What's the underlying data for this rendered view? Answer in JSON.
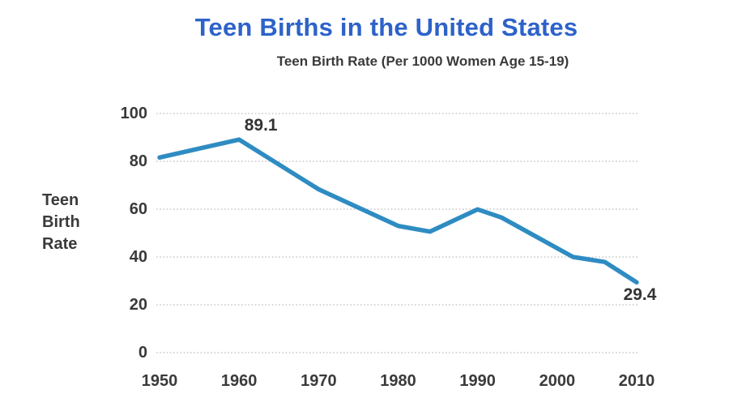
{
  "colors": {
    "title": "#2d62c9",
    "line": "#2e8cc2",
    "text": "#3a3a3a",
    "grid": "#c9c9c9",
    "bg": "#ffffff"
  },
  "header": {
    "title": "Teen Births in the United States",
    "subtitle": "Teen Birth Rate (Per 1000 Women Age 15-19)"
  },
  "chart_data": {
    "type": "line",
    "title": "Teen Births in the United States",
    "subtitle": "Teen Birth Rate (Per 1000 Women Age 15-19)",
    "ylabel": "Teen Birth Rate",
    "xlabel": "",
    "xlim": [
      1950,
      2010
    ],
    "ylim": [
      0,
      100
    ],
    "x_ticks": [
      1950,
      1960,
      1970,
      1980,
      1990,
      2000,
      2010
    ],
    "y_ticks": [
      0,
      20,
      40,
      60,
      80,
      100
    ],
    "grid": "horizontal-dotted",
    "legend": "none",
    "line_color": "#2e8cc2",
    "series": [
      {
        "name": "Teen Birth Rate (Per 1000 Women Age 15-19)",
        "points": [
          {
            "year": 1950,
            "value": 81.6
          },
          {
            "year": 1960,
            "value": 89.1
          },
          {
            "year": 1970,
            "value": 68.3
          },
          {
            "year": 1980,
            "value": 53.0
          },
          {
            "year": 1984,
            "value": 50.6
          },
          {
            "year": 1990,
            "value": 59.9
          },
          {
            "year": 1993,
            "value": 56.5
          },
          {
            "year": 2002,
            "value": 40.0
          },
          {
            "year": 2006,
            "value": 37.9
          },
          {
            "year": 2010,
            "value": 29.4
          }
        ]
      }
    ],
    "annotations": [
      {
        "text": "89.1",
        "year": 1960,
        "value": 89.1,
        "placement": "above"
      },
      {
        "text": "29.4",
        "year": 2010,
        "value": 29.4,
        "placement": "below"
      }
    ]
  }
}
